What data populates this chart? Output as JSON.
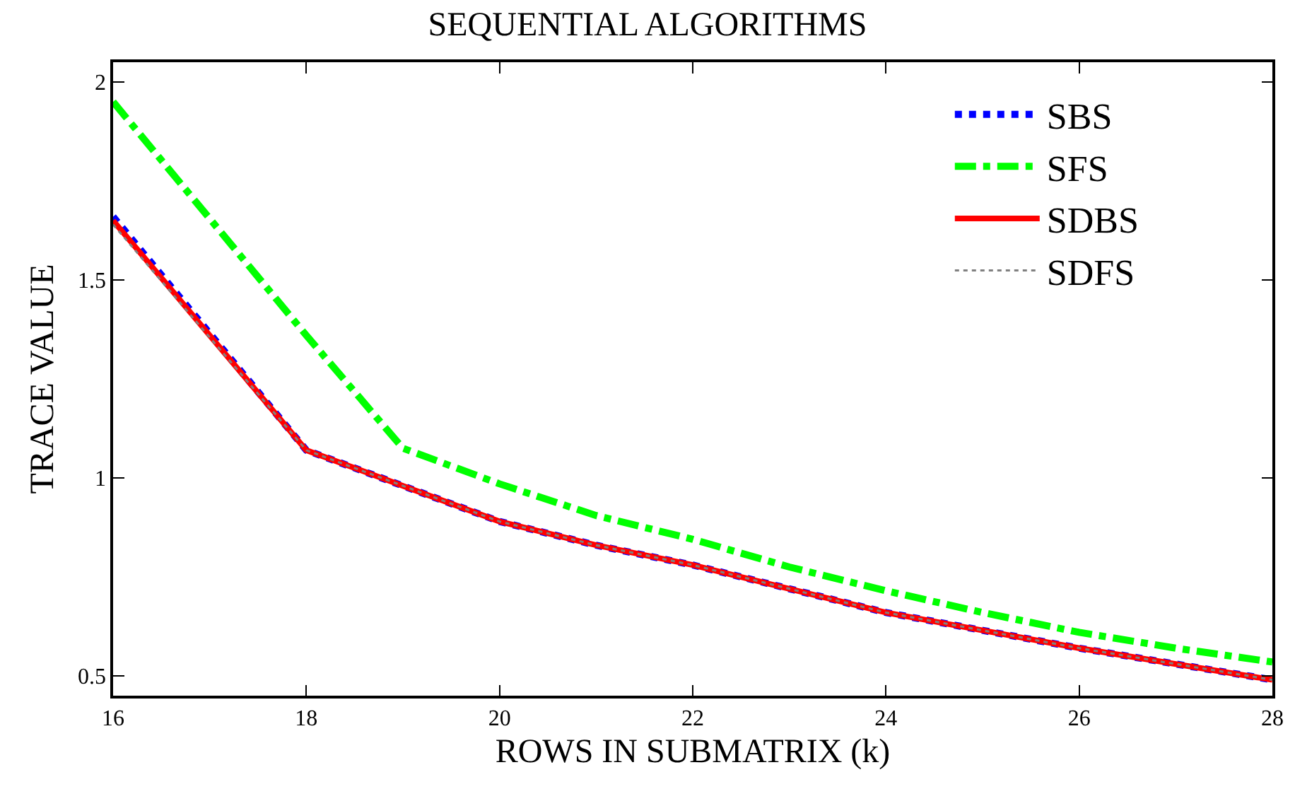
{
  "chart_data": {
    "type": "line",
    "title": "SEQUENTIAL ALGORITHMS",
    "xlabel": "ROWS IN SUBMATRIX (k)",
    "ylabel": "TRACE VALUE",
    "x": [
      16,
      18,
      19,
      20,
      21,
      22,
      23,
      24,
      25,
      26,
      27,
      28
    ],
    "series": [
      {
        "name": "SBS",
        "color": "#0000ff",
        "line_style": "dotted",
        "values": [
          1.66,
          1.07,
          0.98,
          0.89,
          0.83,
          0.78,
          0.72,
          0.66,
          0.615,
          0.57,
          0.53,
          0.49
        ]
      },
      {
        "name": "SFS",
        "color": "#00ff00",
        "line_style": "dashed",
        "values": [
          1.95,
          1.36,
          1.075,
          0.985,
          0.905,
          0.845,
          0.775,
          0.715,
          0.66,
          0.61,
          0.57,
          0.535
        ]
      },
      {
        "name": "SDBS",
        "color": "#ff0000",
        "line_style": "solid",
        "values": [
          1.65,
          1.07,
          0.98,
          0.89,
          0.83,
          0.78,
          0.72,
          0.66,
          0.615,
          0.57,
          0.53,
          0.49
        ]
      },
      {
        "name": "SDFS",
        "color": "#808080",
        "line_style": "dotted",
        "values": [
          1.64,
          1.07,
          0.98,
          0.89,
          0.83,
          0.78,
          0.72,
          0.66,
          0.615,
          0.57,
          0.53,
          0.49
        ]
      }
    ],
    "xlim": [
      16,
      28
    ],
    "xticks": [
      16,
      18,
      20,
      22,
      24,
      26,
      28
    ],
    "ylim": [
      0.45,
      2.05
    ],
    "yticks": [
      0.5,
      1,
      1.5,
      2
    ],
    "grid": false,
    "legend": "top right",
    "marker": "none"
  }
}
